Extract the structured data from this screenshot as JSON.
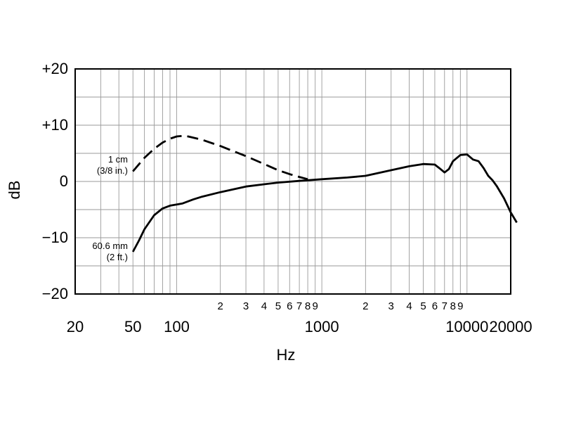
{
  "chart_data": {
    "type": "line",
    "xlabel": "Hz",
    "ylabel": "dB",
    "x_scale": "log",
    "xlim": [
      20,
      20000
    ],
    "ylim": [
      -20,
      20
    ],
    "grid": true,
    "y_ticks": [
      {
        "value": 20,
        "label": "+20"
      },
      {
        "value": 10,
        "label": "+10"
      },
      {
        "value": 0,
        "label": "0"
      },
      {
        "value": -10,
        "label": "−10"
      },
      {
        "value": -20,
        "label": "−20"
      }
    ],
    "x_major_ticks": [
      {
        "value": 20,
        "label": "20"
      },
      {
        "value": 50,
        "label": "50"
      },
      {
        "value": 100,
        "label": "100"
      },
      {
        "value": 1000,
        "label": "1000"
      },
      {
        "value": 10000,
        "label": "10000"
      },
      {
        "value": 20000,
        "label": "20000"
      }
    ],
    "x_minor_ticks": [
      {
        "value": 200,
        "label": "2"
      },
      {
        "value": 300,
        "label": "3"
      },
      {
        "value": 400,
        "label": "4"
      },
      {
        "value": 500,
        "label": "5"
      },
      {
        "value": 600,
        "label": "6"
      },
      {
        "value": 700,
        "label": "7"
      },
      {
        "value": 800,
        "label": "8"
      },
      {
        "value": 900,
        "label": "9"
      },
      {
        "value": 2000,
        "label": "2"
      },
      {
        "value": 3000,
        "label": "3"
      },
      {
        "value": 4000,
        "label": "4"
      },
      {
        "value": 5000,
        "label": "5"
      },
      {
        "value": 6000,
        "label": "6"
      },
      {
        "value": 7000,
        "label": "7"
      },
      {
        "value": 8000,
        "label": "8"
      },
      {
        "value": 9000,
        "label": "9"
      }
    ],
    "series": [
      {
        "label_lines": [
          "1 cm",
          "(3/8 in.)"
        ],
        "style": "dashed",
        "x": [
          50,
          60,
          70,
          80,
          90,
          100,
          110,
          120,
          150,
          200,
          300,
          400,
          500,
          600,
          700,
          800
        ],
        "y": [
          1.8,
          4.2,
          5.8,
          6.9,
          7.6,
          8.0,
          8.1,
          8.0,
          7.4,
          6.3,
          4.5,
          3.1,
          2.0,
          1.3,
          0.8,
          0.4
        ]
      },
      {
        "label_lines": [
          "60.6 mm",
          "(2 ft.)"
        ],
        "style": "solid",
        "x": [
          50,
          55,
          60,
          70,
          80,
          90,
          100,
          110,
          130,
          150,
          200,
          300,
          400,
          500,
          700,
          1000,
          1500,
          2000,
          3000,
          4000,
          5000,
          6000,
          6500,
          7000,
          7500,
          8000,
          9000,
          10000,
          11000,
          12000,
          13000,
          14000,
          15000,
          16000,
          18000,
          20000,
          22000
        ],
        "y": [
          -12.5,
          -10.5,
          -8.5,
          -6.0,
          -4.8,
          -4.3,
          -4.1,
          -3.9,
          -3.2,
          -2.7,
          -1.9,
          -0.9,
          -0.5,
          -0.2,
          0.1,
          0.4,
          0.7,
          1.0,
          2.0,
          2.7,
          3.1,
          3.0,
          2.3,
          1.6,
          2.2,
          3.6,
          4.7,
          4.8,
          3.9,
          3.6,
          2.4,
          1.0,
          0.2,
          -0.8,
          -3.0,
          -5.5,
          -7.3
        ]
      }
    ]
  }
}
